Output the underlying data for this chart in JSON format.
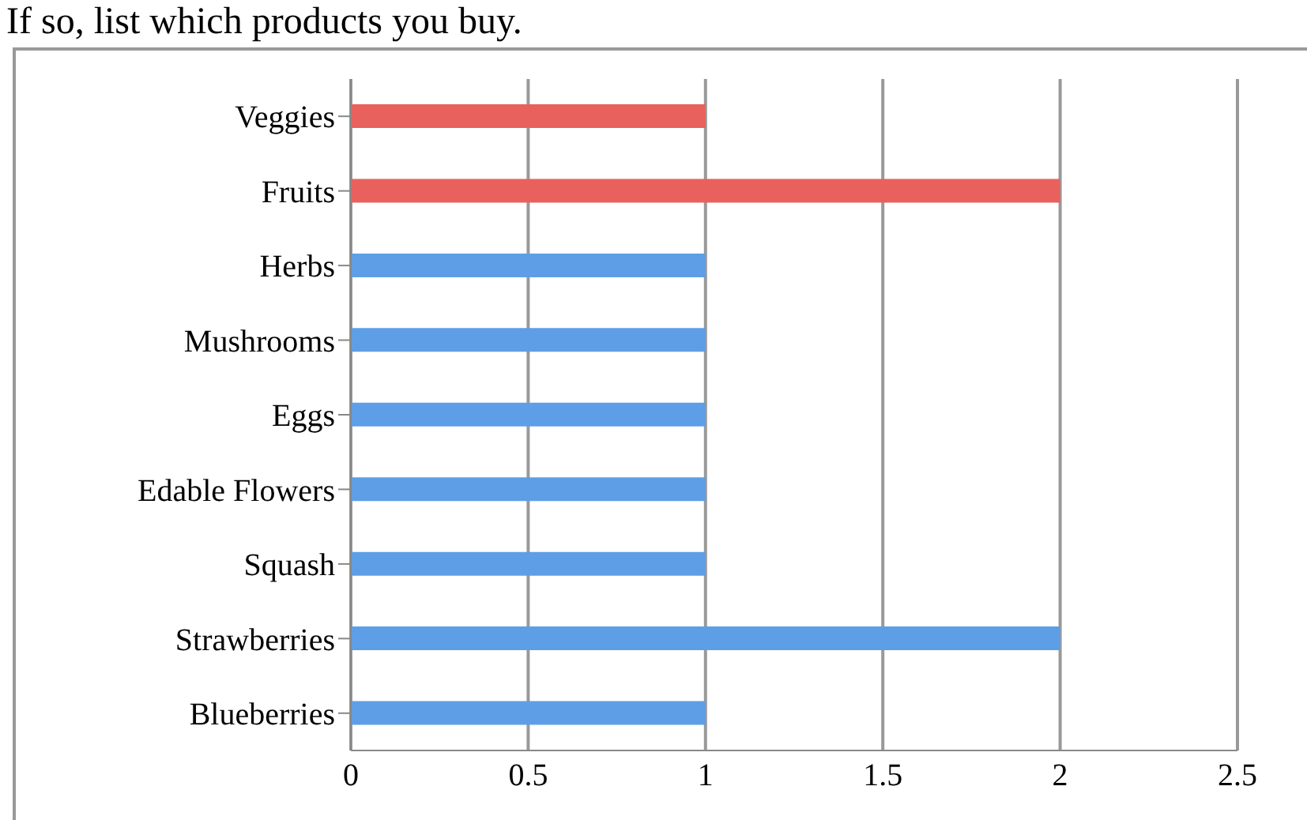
{
  "chart_data": {
    "type": "bar",
    "orientation": "horizontal",
    "title": "If so, list which products you buy.",
    "categories": [
      "Veggies",
      "Fruits",
      "Herbs",
      "Mushrooms",
      "Eggs",
      "Edable Flowers",
      "Squash",
      "Strawberries",
      "Blueberries"
    ],
    "values": [
      1,
      2,
      1,
      1,
      1,
      1,
      1,
      2,
      1
    ],
    "colors": [
      "#e8615c",
      "#e8615c",
      "#5e9ee6",
      "#5e9ee6",
      "#5e9ee6",
      "#5e9ee6",
      "#5e9ee6",
      "#5e9ee6",
      "#5e9ee6"
    ],
    "xlim": [
      0,
      2.5
    ],
    "xticks": [
      0,
      0.5,
      1,
      1.5,
      2,
      2.5
    ],
    "grid": "x"
  }
}
